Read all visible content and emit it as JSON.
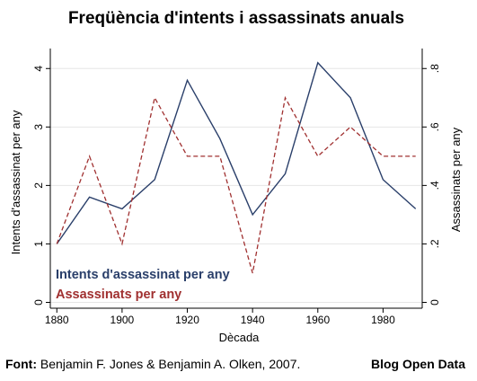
{
  "chart_data": {
    "type": "line",
    "title": "Freqüència d'intents i assassinats anuals",
    "xlabel": "Dècada",
    "ylabel_left": "Intents d'assassinat per any",
    "ylabel_right": "Assassinats per any",
    "x": [
      1880,
      1890,
      1900,
      1910,
      1920,
      1930,
      1940,
      1950,
      1960,
      1970,
      1980,
      1990
    ],
    "x_ticks": [
      "1880",
      "1900",
      "1920",
      "1940",
      "1960",
      "1980"
    ],
    "xlim": [
      1878,
      1992
    ],
    "ylim_left": [
      -0.1,
      4.25
    ],
    "ylim_right": [
      -0.02,
      0.85
    ],
    "y_ticks_left": [
      "0",
      "1",
      "2",
      "3",
      "4"
    ],
    "y_ticks_right": [
      "0",
      ".2",
      ".4",
      ".6",
      ".8"
    ],
    "grid": true,
    "legend_position": "bottom-left",
    "series": [
      {
        "name": "Intents d'assassinat per any",
        "axis": "left",
        "color": "#2a3f6a",
        "style": "solid",
        "values": [
          1.0,
          1.8,
          1.6,
          2.1,
          3.8,
          2.8,
          1.5,
          2.2,
          4.1,
          3.5,
          2.1,
          1.6
        ]
      },
      {
        "name": "Assassinats per any",
        "axis": "right",
        "color": "#a03030",
        "style": "dashed",
        "values": [
          0.2,
          0.5,
          0.2,
          0.7,
          0.5,
          0.5,
          0.1,
          0.7,
          0.5,
          0.6,
          0.5,
          0.5
        ]
      }
    ]
  },
  "footer": {
    "source_label": "Font:",
    "source_text": "Benjamin F. Jones & Benjamin A. Olken, 2007.",
    "brand": "Blog Open Data"
  }
}
